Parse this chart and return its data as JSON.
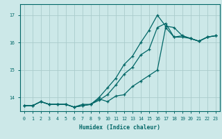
{
  "background_color": "#cce8e8",
  "grid_color": "#aacccc",
  "line_color": "#006666",
  "xlabel": "Humidex (Indice chaleur)",
  "ylabel_ticks": [
    14,
    15,
    16,
    17
  ],
  "xlim": [
    -0.5,
    23.5
  ],
  "ylim": [
    13.5,
    17.4
  ],
  "xticks": [
    0,
    1,
    2,
    3,
    4,
    5,
    6,
    7,
    8,
    9,
    10,
    11,
    12,
    13,
    14,
    15,
    16,
    17,
    18,
    19,
    20,
    21,
    22,
    23
  ],
  "series1_x": [
    0,
    1,
    2,
    3,
    4,
    5,
    6,
    7,
    8,
    9,
    10,
    11,
    12,
    13,
    14,
    15,
    16,
    17,
    18,
    19,
    20,
    21,
    22,
    23
  ],
  "series1_y": [
    13.7,
    13.7,
    13.85,
    13.75,
    13.75,
    13.75,
    13.65,
    13.75,
    13.75,
    13.95,
    13.85,
    14.05,
    14.1,
    14.4,
    14.6,
    14.8,
    15.0,
    16.55,
    16.2,
    16.2,
    16.15,
    16.05,
    16.2,
    16.25
  ],
  "series2_x": [
    0,
    1,
    2,
    3,
    4,
    5,
    6,
    7,
    8,
    9,
    10,
    11,
    12,
    13,
    14,
    15,
    16,
    17,
    18,
    19,
    20,
    21,
    22,
    23
  ],
  "series2_y": [
    13.7,
    13.7,
    13.85,
    13.75,
    13.75,
    13.75,
    13.65,
    13.7,
    13.75,
    14.0,
    14.35,
    14.7,
    15.2,
    15.5,
    16.0,
    16.45,
    17.0,
    16.6,
    16.55,
    16.25,
    16.15,
    16.05,
    16.2,
    16.25
  ],
  "series3_x": [
    0,
    1,
    2,
    3,
    4,
    5,
    6,
    7,
    8,
    9,
    10,
    11,
    12,
    13,
    14,
    15,
    16,
    17,
    18,
    19,
    20,
    21,
    22,
    23
  ],
  "series3_y": [
    13.7,
    13.7,
    13.85,
    13.75,
    13.75,
    13.75,
    13.65,
    13.7,
    13.75,
    13.9,
    14.1,
    14.45,
    14.85,
    15.1,
    15.55,
    15.75,
    16.55,
    16.7,
    16.2,
    16.25,
    16.15,
    16.05,
    16.2,
    16.25
  ]
}
